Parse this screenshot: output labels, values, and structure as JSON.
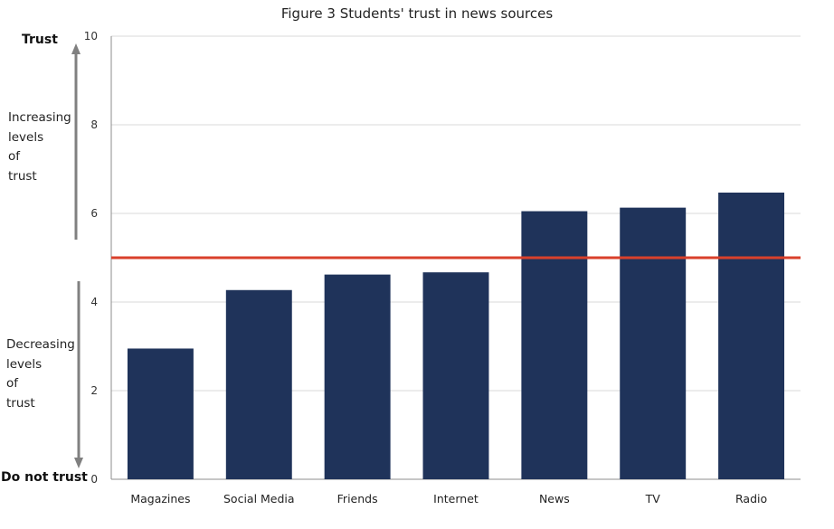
{
  "chart_data": {
    "type": "bar",
    "title": "Figure 3 Students' trust in news sources",
    "xlabel": "",
    "ylabel": "",
    "categories": [
      "Magazines",
      "Social Media",
      "Friends",
      "Internet",
      "News",
      "TV",
      "Radio"
    ],
    "values": [
      2.95,
      4.27,
      4.62,
      4.67,
      6.05,
      6.13,
      6.47
    ],
    "ylim": [
      0,
      10
    ],
    "yticks": [
      "0",
      "2",
      "4",
      "6",
      "8",
      "10"
    ],
    "reference_line": 5,
    "grid": true,
    "legend": "none",
    "colors": {
      "bar": "#1f335a",
      "reference_line": "#d9402b",
      "arrow": "#808080",
      "grid": "#d9d9d9"
    }
  },
  "annotations": {
    "top_label": "Trust",
    "bottom_label": "Do not trust",
    "increasing_lines": [
      "Increasing",
      "levels",
      "of",
      "trust"
    ],
    "decreasing_lines": [
      "Decreasing",
      "levels",
      "of",
      "trust"
    ]
  }
}
